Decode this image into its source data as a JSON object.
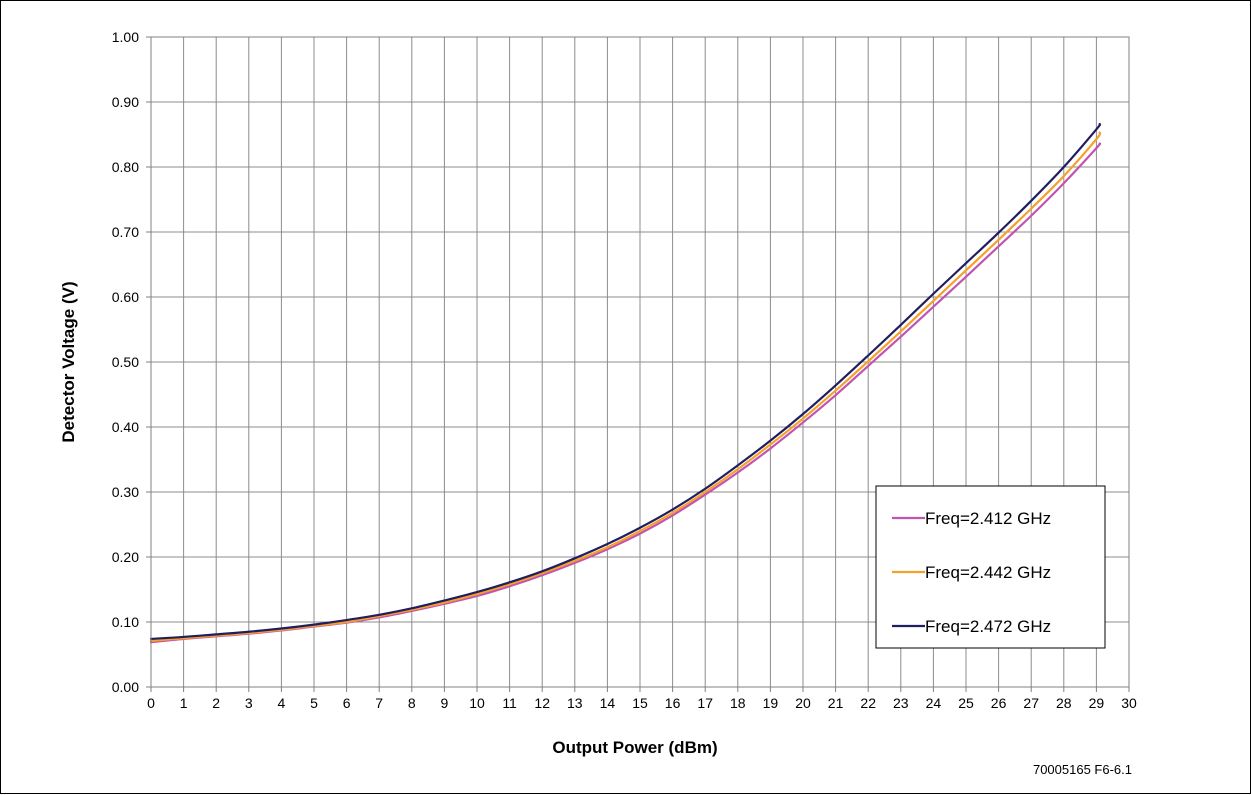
{
  "chart_data": {
    "type": "line",
    "title": "",
    "xlabel": "Output Power (dBm)",
    "ylabel": "Detector Voltage (V)",
    "xlim": [
      0,
      30
    ],
    "ylim": [
      0,
      1.0
    ],
    "x_ticks": [
      "0",
      "1",
      "2",
      "3",
      "4",
      "5",
      "6",
      "7",
      "8",
      "9",
      "10",
      "11",
      "12",
      "13",
      "14",
      "15",
      "16",
      "17",
      "18",
      "19",
      "20",
      "21",
      "22",
      "23",
      "24",
      "25",
      "26",
      "27",
      "28",
      "29",
      "30"
    ],
    "y_ticks": [
      "0.00",
      "0.10",
      "0.20",
      "0.30",
      "0.40",
      "0.50",
      "0.60",
      "0.70",
      "0.80",
      "0.90",
      "1.00"
    ],
    "grid": true,
    "legend_position": "bottom-right",
    "x": [
      0,
      1,
      2,
      3,
      4,
      5,
      6,
      7,
      8,
      9,
      10,
      11,
      12,
      13,
      14,
      15,
      16,
      17,
      18,
      19,
      20,
      21,
      22,
      23,
      24,
      25,
      26,
      27,
      28,
      29,
      29.1
    ],
    "series": [
      {
        "name": "Freq=2.412 GHz",
        "color": "#c254b0",
        "values": [
          0.069,
          0.074,
          0.078,
          0.082,
          0.087,
          0.093,
          0.099,
          0.107,
          0.117,
          0.128,
          0.14,
          0.155,
          0.172,
          0.191,
          0.212,
          0.236,
          0.264,
          0.296,
          0.33,
          0.367,
          0.407,
          0.449,
          0.494,
          0.539,
          0.585,
          0.631,
          0.678,
          0.725,
          0.775,
          0.829,
          0.836
        ]
      },
      {
        "name": "Freq=2.442 GHz",
        "color": "#f5a02a",
        "values": [
          0.071,
          0.075,
          0.079,
          0.083,
          0.088,
          0.094,
          0.1,
          0.109,
          0.119,
          0.13,
          0.143,
          0.158,
          0.175,
          0.194,
          0.215,
          0.24,
          0.268,
          0.3,
          0.335,
          0.373,
          0.413,
          0.456,
          0.501,
          0.547,
          0.594,
          0.641,
          0.688,
          0.736,
          0.786,
          0.843,
          0.853
        ]
      },
      {
        "name": "Freq=2.472 GHz",
        "color": "#1f1f5e",
        "values": [
          0.074,
          0.077,
          0.081,
          0.085,
          0.09,
          0.096,
          0.103,
          0.111,
          0.121,
          0.133,
          0.146,
          0.161,
          0.178,
          0.198,
          0.22,
          0.245,
          0.273,
          0.305,
          0.341,
          0.379,
          0.42,
          0.464,
          0.51,
          0.557,
          0.605,
          0.652,
          0.699,
          0.748,
          0.8,
          0.858,
          0.866
        ]
      }
    ],
    "annotation": "70005165 F6-6.1"
  }
}
